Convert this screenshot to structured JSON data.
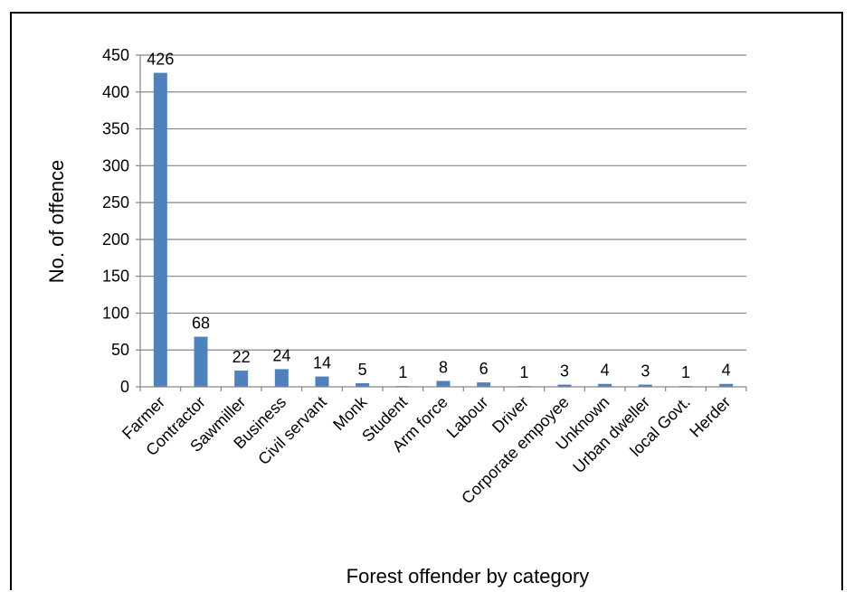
{
  "chart_data": {
    "type": "bar",
    "title": "",
    "xlabel": "Forest offender by category",
    "ylabel": "No. of offence",
    "categories": [
      "Farmer",
      "Contractor",
      "Sawmiller",
      "Business",
      "Civil servant",
      "Monk",
      "Student",
      "Arm force",
      "Labour",
      "Driver",
      "Corporate empoyee",
      "Unknown",
      "Urban dweller",
      "local Govt.",
      "Herder"
    ],
    "values": [
      426,
      68,
      22,
      24,
      14,
      5,
      1,
      8,
      6,
      1,
      3,
      4,
      3,
      1,
      4
    ],
    "ylim": [
      0,
      450
    ],
    "yticks": [
      0,
      50,
      100,
      150,
      200,
      250,
      300,
      350,
      400,
      450
    ],
    "grid": true,
    "legend": "none",
    "bar_color": "#4F81BD",
    "grid_color": "#868686"
  }
}
